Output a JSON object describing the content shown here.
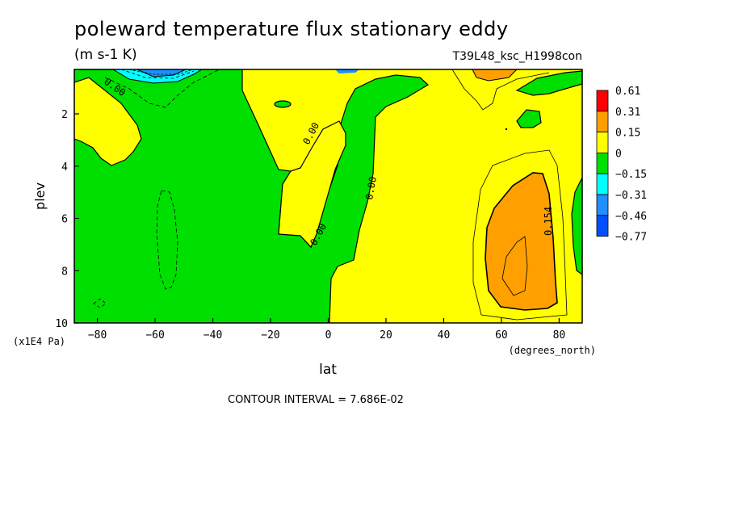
{
  "header": {
    "title": "poleward temperature flux stationary eddy",
    "units": "(m s-1 K)",
    "run": "T39L48_ksc_H1998con"
  },
  "footer": {
    "contour_interval": "CONTOUR INTERVAL = 7.686E-02"
  },
  "chart_data": {
    "type": "heatmap",
    "title": "poleward temperature flux stationary eddy",
    "subtitle": "(m s-1 K)",
    "run_label": "T39L48_ksc_H1998con",
    "xlabel": "lat",
    "xunits": "(degrees_north)",
    "ylabel": "plev",
    "yunits": "(x1E4 Pa)",
    "xlim": [
      -88,
      88
    ],
    "ylim": [
      10,
      0.3
    ],
    "x_ticks": [
      -80,
      -60,
      -40,
      -20,
      0,
      20,
      40,
      60,
      80
    ],
    "y_ticks": [
      2,
      4,
      6,
      8,
      10
    ],
    "contour_interval": 0.07686,
    "contour_labels": [
      "0.00",
      "0.00",
      "0.00",
      "0.00",
      "0.00",
      "0.154"
    ],
    "legend": {
      "placement": "right",
      "levels": [
        "0.61",
        "0.31",
        "0.15",
        "0",
        "-0.15",
        "-0.31",
        "-0.46",
        "-0.77"
      ],
      "colors": [
        "#ff0000",
        "#ff9f00",
        "#ffff00",
        "#00e000",
        "#00ffff",
        "#1e90ff",
        "#0050ff"
      ]
    },
    "color_roles": {
      "positive": "#ffff00",
      "negative": "#00e000",
      "strong_positive": "#ff9f00",
      "strong_negative": "#00ffff",
      "very_negative": "#1e90ff"
    }
  }
}
